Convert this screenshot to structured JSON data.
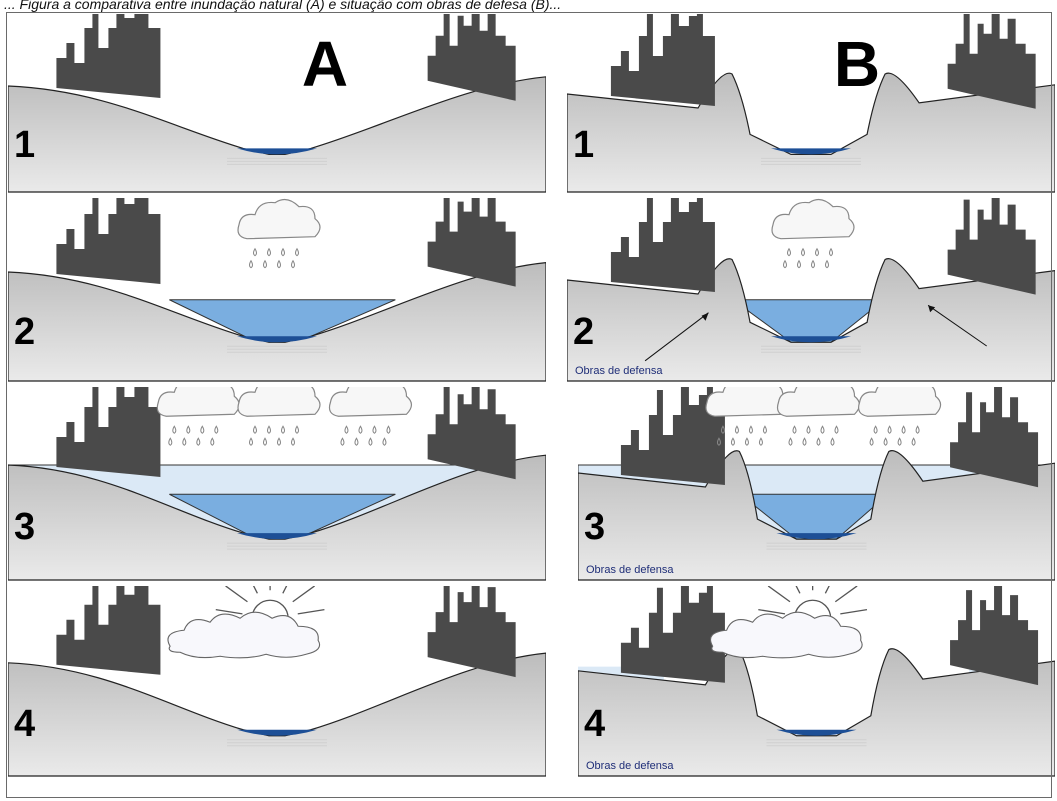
{
  "caption": "... Figura a comparativa entre inundação natural (A) e situação com obras de defesa (B)...",
  "columns": [
    {
      "id": "A",
      "label": "A"
    },
    {
      "id": "B",
      "label": "B"
    }
  ],
  "steps": [
    "1",
    "2",
    "3",
    "4"
  ],
  "levee_label": "Obras de defensa",
  "colors": {
    "ground_top": "#bcbcbc",
    "ground_bottom": "#eaeaea",
    "river": "#1d4f96",
    "flood": "#7aaee0",
    "high_flood": "#dbe9f6",
    "buildings": "#4a4a4a",
    "cloud_stroke": "#888888"
  },
  "icons": {
    "rain": "rain-cloud-icon",
    "sun": "sun-behind-cloud-icon"
  }
}
